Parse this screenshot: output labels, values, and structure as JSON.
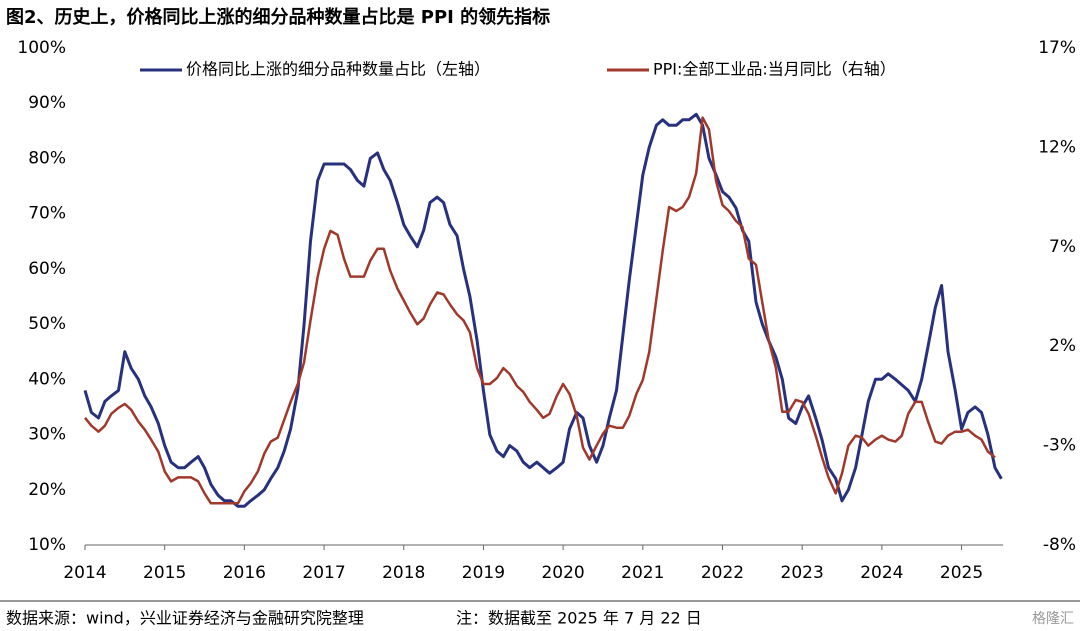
{
  "chart_data": {
    "type": "line",
    "title": "图2、历史上，价格同比上涨的细分品种数量占比是 PPI 的领先指标",
    "source": "数据来源：wind，兴业证券经济与金融研究院整理",
    "note": "注：数据截至 2025 年 7 月 22 日",
    "watermark": "格隆汇",
    "legend": "top",
    "grid": false,
    "xlim": [
      2014,
      2025.52
    ],
    "xticks": [
      2014,
      2015,
      2016,
      2017,
      2018,
      2019,
      2020,
      2021,
      2022,
      2023,
      2024,
      2025
    ],
    "ylim": [
      10,
      100
    ],
    "yticks": [
      {
        "value": 10,
        "label": "10%"
      },
      {
        "value": 20,
        "label": "20%"
      },
      {
        "value": 30,
        "label": "30%"
      },
      {
        "value": 40,
        "label": "40%"
      },
      {
        "value": 50,
        "label": "50%"
      },
      {
        "value": 60,
        "label": "60%"
      },
      {
        "value": 70,
        "label": "70%"
      },
      {
        "value": 80,
        "label": "80%"
      },
      {
        "value": 90,
        "label": "90%"
      },
      {
        "value": 100,
        "label": "100%"
      }
    ],
    "y2lim": [
      -8,
      17
    ],
    "y2ticks": [
      {
        "value": -8,
        "label": "-8%"
      },
      {
        "value": -3,
        "label": "-3%"
      },
      {
        "value": 2,
        "label": "2%"
      },
      {
        "value": 7,
        "label": "7%"
      },
      {
        "value": 12,
        "label": "12%"
      },
      {
        "value": 17,
        "label": "17%"
      }
    ],
    "x": [
      2014.0,
      2014.08,
      2014.17,
      2014.25,
      2014.33,
      2014.42,
      2014.5,
      2014.58,
      2014.67,
      2014.75,
      2014.83,
      2014.92,
      2015.0,
      2015.08,
      2015.17,
      2015.25,
      2015.33,
      2015.42,
      2015.5,
      2015.58,
      2015.67,
      2015.75,
      2015.83,
      2015.92,
      2016.0,
      2016.08,
      2016.17,
      2016.25,
      2016.33,
      2016.42,
      2016.5,
      2016.58,
      2016.67,
      2016.75,
      2016.83,
      2016.92,
      2017.0,
      2017.08,
      2017.17,
      2017.25,
      2017.33,
      2017.42,
      2017.5,
      2017.58,
      2017.67,
      2017.75,
      2017.83,
      2017.92,
      2018.0,
      2018.08,
      2018.17,
      2018.25,
      2018.33,
      2018.42,
      2018.5,
      2018.58,
      2018.67,
      2018.75,
      2018.83,
      2018.92,
      2019.0,
      2019.08,
      2019.17,
      2019.25,
      2019.33,
      2019.42,
      2019.5,
      2019.58,
      2019.67,
      2019.75,
      2019.83,
      2019.92,
      2020.0,
      2020.08,
      2020.17,
      2020.25,
      2020.33,
      2020.42,
      2020.5,
      2020.58,
      2020.67,
      2020.75,
      2020.83,
      2020.92,
      2021.0,
      2021.08,
      2021.17,
      2021.25,
      2021.33,
      2021.42,
      2021.5,
      2021.58,
      2021.67,
      2021.75,
      2021.83,
      2021.92,
      2022.0,
      2022.08,
      2022.17,
      2022.25,
      2022.33,
      2022.42,
      2022.5,
      2022.58,
      2022.67,
      2022.75,
      2022.83,
      2022.92,
      2023.0,
      2023.08,
      2023.17,
      2023.25,
      2023.33,
      2023.42,
      2023.5,
      2023.58,
      2023.67,
      2023.75,
      2023.83,
      2023.92,
      2024.0,
      2024.08,
      2024.17,
      2024.25,
      2024.33,
      2024.42,
      2024.5,
      2024.58,
      2024.67,
      2024.75,
      2024.83,
      2024.92,
      2025.0,
      2025.08,
      2025.17,
      2025.25,
      2025.33,
      2025.42,
      2025.5
    ],
    "series": [
      {
        "name": "价格同比上涨的细分品种数量占比（左轴）",
        "color": "#27317e",
        "axis": "y",
        "values": [
          38,
          34,
          33,
          36,
          37,
          38,
          45,
          42,
          40,
          37,
          35,
          32,
          28,
          25,
          24,
          24,
          25,
          26,
          24,
          21,
          19,
          18,
          18,
          17,
          17,
          18,
          19,
          20,
          22,
          24,
          27,
          31,
          38,
          50,
          65,
          76,
          79,
          79,
          79,
          79,
          78,
          76,
          75,
          80,
          81,
          78,
          76,
          72,
          68,
          66,
          64,
          67,
          72,
          73,
          72,
          68,
          66,
          60,
          55,
          47,
          38,
          30,
          27,
          26,
          28,
          27,
          25,
          24,
          25,
          24,
          23,
          24,
          25,
          31,
          34,
          33,
          28,
          25,
          28,
          33,
          38,
          48,
          58,
          68,
          77,
          82,
          86,
          87,
          86,
          86,
          87,
          87,
          88,
          86,
          80,
          77,
          74,
          73,
          71,
          67,
          65,
          54,
          50,
          47,
          44,
          40,
          33,
          32,
          35,
          37,
          33,
          29,
          24,
          22,
          18,
          20,
          24,
          30,
          36,
          40,
          40,
          41,
          40,
          39,
          38,
          36,
          40,
          46,
          53,
          57,
          45,
          38,
          31,
          34,
          35,
          34,
          30,
          24,
          22
        ]
      },
      {
        "name": "PPI:全部工业品:当月同比（右轴）",
        "color": "#a0392b",
        "axis": "y2",
        "values": [
          -1.6,
          -2.0,
          -2.3,
          -2.0,
          -1.4,
          -1.1,
          -0.9,
          -1.2,
          -1.8,
          -2.2,
          -2.7,
          -3.3,
          -4.3,
          -4.8,
          -4.6,
          -4.6,
          -4.6,
          -4.8,
          -5.4,
          -5.9,
          -5.9,
          -5.9,
          -5.9,
          -5.9,
          -5.3,
          -4.9,
          -4.3,
          -3.4,
          -2.8,
          -2.6,
          -1.7,
          -0.8,
          0.1,
          1.2,
          3.3,
          5.5,
          6.9,
          7.8,
          7.6,
          6.4,
          5.5,
          5.5,
          5.5,
          6.3,
          6.9,
          6.9,
          5.8,
          4.9,
          4.3,
          3.7,
          3.1,
          3.4,
          4.1,
          4.7,
          4.6,
          4.1,
          3.6,
          3.3,
          2.7,
          0.9,
          0.1,
          0.1,
          0.4,
          0.9,
          0.6,
          0.0,
          -0.3,
          -0.8,
          -1.2,
          -1.6,
          -1.4,
          -0.5,
          0.1,
          -0.4,
          -1.5,
          -3.1,
          -3.7,
          -3.0,
          -2.4,
          -2.0,
          -2.1,
          -2.1,
          -1.5,
          -0.4,
          0.3,
          1.7,
          4.4,
          6.8,
          9.0,
          8.8,
          9.0,
          9.5,
          10.7,
          13.5,
          12.9,
          10.3,
          9.1,
          8.8,
          8.3,
          8.0,
          6.4,
          6.1,
          4.2,
          2.3,
          0.9,
          -1.3,
          -1.3,
          -0.7,
          -0.8,
          -1.4,
          -2.5,
          -3.6,
          -4.6,
          -5.4,
          -4.4,
          -3.0,
          -2.5,
          -2.6,
          -3.0,
          -2.7,
          -2.5,
          -2.7,
          -2.8,
          -2.5,
          -1.4,
          -0.8,
          -0.8,
          -1.8,
          -2.8,
          -2.9,
          -2.5,
          -2.3,
          -2.3,
          -2.2,
          -2.5,
          -2.7,
          -3.3,
          -3.6,
          null
        ]
      }
    ]
  }
}
